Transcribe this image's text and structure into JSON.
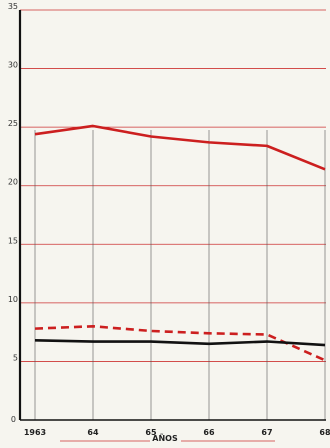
{
  "chart_data": {
    "type": "line",
    "title": "",
    "xlabel": "AÑOS",
    "ylabel": "",
    "x": [
      "1963",
      "64",
      "65",
      "66",
      "67",
      "68"
    ],
    "ylim": [
      0,
      35
    ],
    "yticks": [
      5,
      10,
      15,
      20,
      25,
      30,
      35
    ],
    "grid": true,
    "series": [
      {
        "color": "#cc1f1f",
        "style": "solid",
        "values": [
          24.4,
          25.1,
          24.2,
          23.7,
          23.4,
          21.4
        ]
      },
      {
        "color": "#cc1f1f",
        "style": "dashed",
        "values": [
          7.8,
          8.0,
          7.6,
          7.4,
          7.3,
          5.1
        ]
      },
      {
        "color": "#111111",
        "style": "solid",
        "values": [
          6.8,
          6.7,
          6.7,
          6.5,
          6.7,
          6.4
        ]
      }
    ],
    "grid_color": "#cc3333",
    "axis_color": "#111111"
  }
}
